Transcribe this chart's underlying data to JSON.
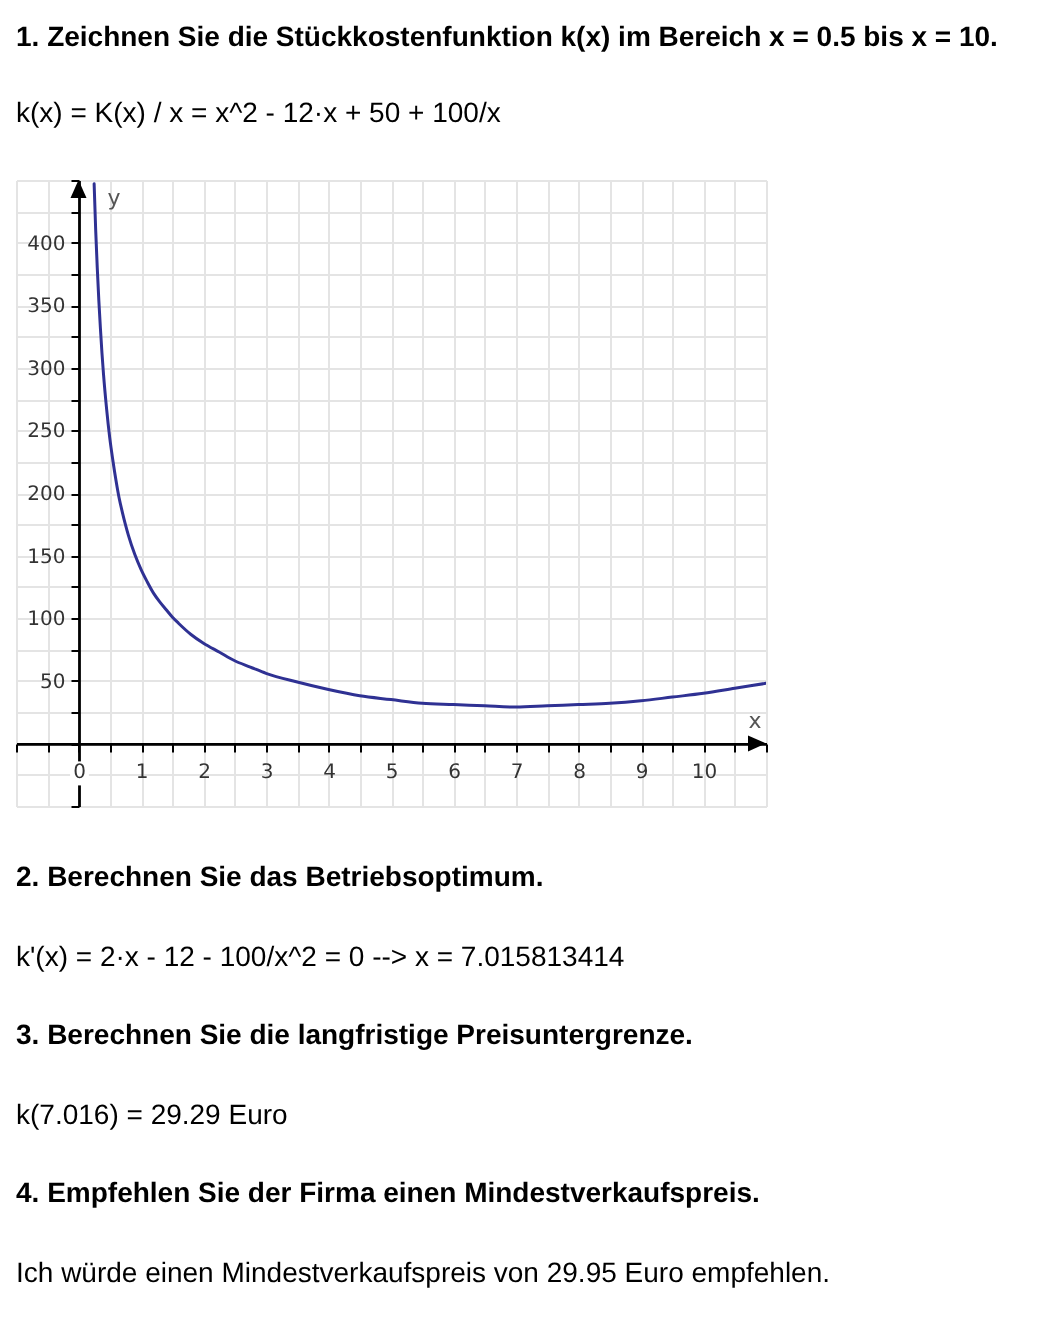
{
  "chart_data": {
    "type": "line",
    "title": "1. Zeichnen Sie die Stückkostenfunktion k(x) im Bereich x = 0.5 bis x = 10.",
    "subtitle": "k(x) = K(x) / x = x^2 - 12·x + 50 + 100/x",
    "xlabel": "x",
    "ylabel": "y",
    "x": [
      0.25,
      0.275,
      0.3,
      0.325,
      0.35,
      0.375,
      0.4,
      0.45,
      0.5,
      0.55,
      0.6,
      0.65,
      0.7,
      0.75,
      0.8,
      0.9,
      1,
      1.1,
      1.2,
      1.3,
      1.4,
      1.5,
      1.6,
      1.8,
      2,
      2.25,
      2.5,
      2.75,
      3,
      3.5,
      4,
      4.5,
      5,
      5.5,
      6,
      6.5,
      7,
      7.5,
      8,
      8.5,
      9,
      9.5,
      10,
      10.5,
      11
    ],
    "values": [
      447,
      410,
      380,
      354,
      332,
      312,
      295,
      267,
      244,
      226,
      210,
      196,
      185,
      175,
      166,
      151,
      139,
      129,
      120,
      113,
      107,
      101,
      96,
      87,
      80,
      73,
      66,
      61,
      56,
      49,
      43,
      38,
      35,
      32,
      31,
      30,
      29,
      30,
      31,
      32,
      34,
      37,
      40,
      44,
      48
    ],
    "color": "#2f3193",
    "xlim": [
      -1,
      11
    ],
    "ylim": [
      -50,
      450
    ],
    "xticks": [
      {
        "value": -1,
        "label": null
      },
      {
        "value": -0.5,
        "label": null
      },
      0,
      {
        "value": 0.5,
        "label": null
      },
      1,
      {
        "value": 1.5,
        "label": null
      },
      2,
      {
        "value": 2.5,
        "label": null
      },
      3,
      {
        "value": 3.5,
        "label": null
      },
      4,
      {
        "value": 4.5,
        "label": null
      },
      5,
      {
        "value": 5.5,
        "label": null
      },
      6,
      {
        "value": 6.5,
        "label": null
      },
      7,
      {
        "value": 7.5,
        "label": null
      },
      8,
      {
        "value": 8.5,
        "label": null
      },
      9,
      {
        "value": 9.5,
        "label": null
      },
      10,
      {
        "value": 10.5,
        "label": null
      },
      {
        "value": 11,
        "label": null
      }
    ],
    "yticks": [
      {
        "value": -50,
        "label": null
      },
      {
        "value": -25,
        "label": null
      },
      {
        "value": 0,
        "label": null
      },
      {
        "value": 25,
        "label": null
      },
      50,
      {
        "value": 75,
        "label": null
      },
      100,
      {
        "value": 125,
        "label": null
      },
      150,
      {
        "value": 175,
        "label": null
      },
      200,
      {
        "value": 225,
        "label": null
      },
      250,
      {
        "value": 275,
        "label": null
      },
      300,
      {
        "value": 325,
        "label": null
      },
      350,
      {
        "value": 375,
        "label": null
      },
      400,
      {
        "value": 425,
        "label": null
      },
      {
        "value": 450,
        "label": null
      }
    ],
    "grid": true,
    "annotations": [
      "2. Berechnen Sie das Betriebsoptimum.",
      "k'(x) = 2·x - 12 - 100/x^2 = 0 --> x = 7.015813414",
      "3. Berechnen Sie die langfristige Preisuntergrenze.",
      "k(7.016) = 29.29 Euro",
      "4. Empfehlen Sie der Firma einen Mindestverkaufspreis.",
      "Ich würde einen Mindestverkaufspreis von 29.95 Euro empfehlen."
    ]
  }
}
